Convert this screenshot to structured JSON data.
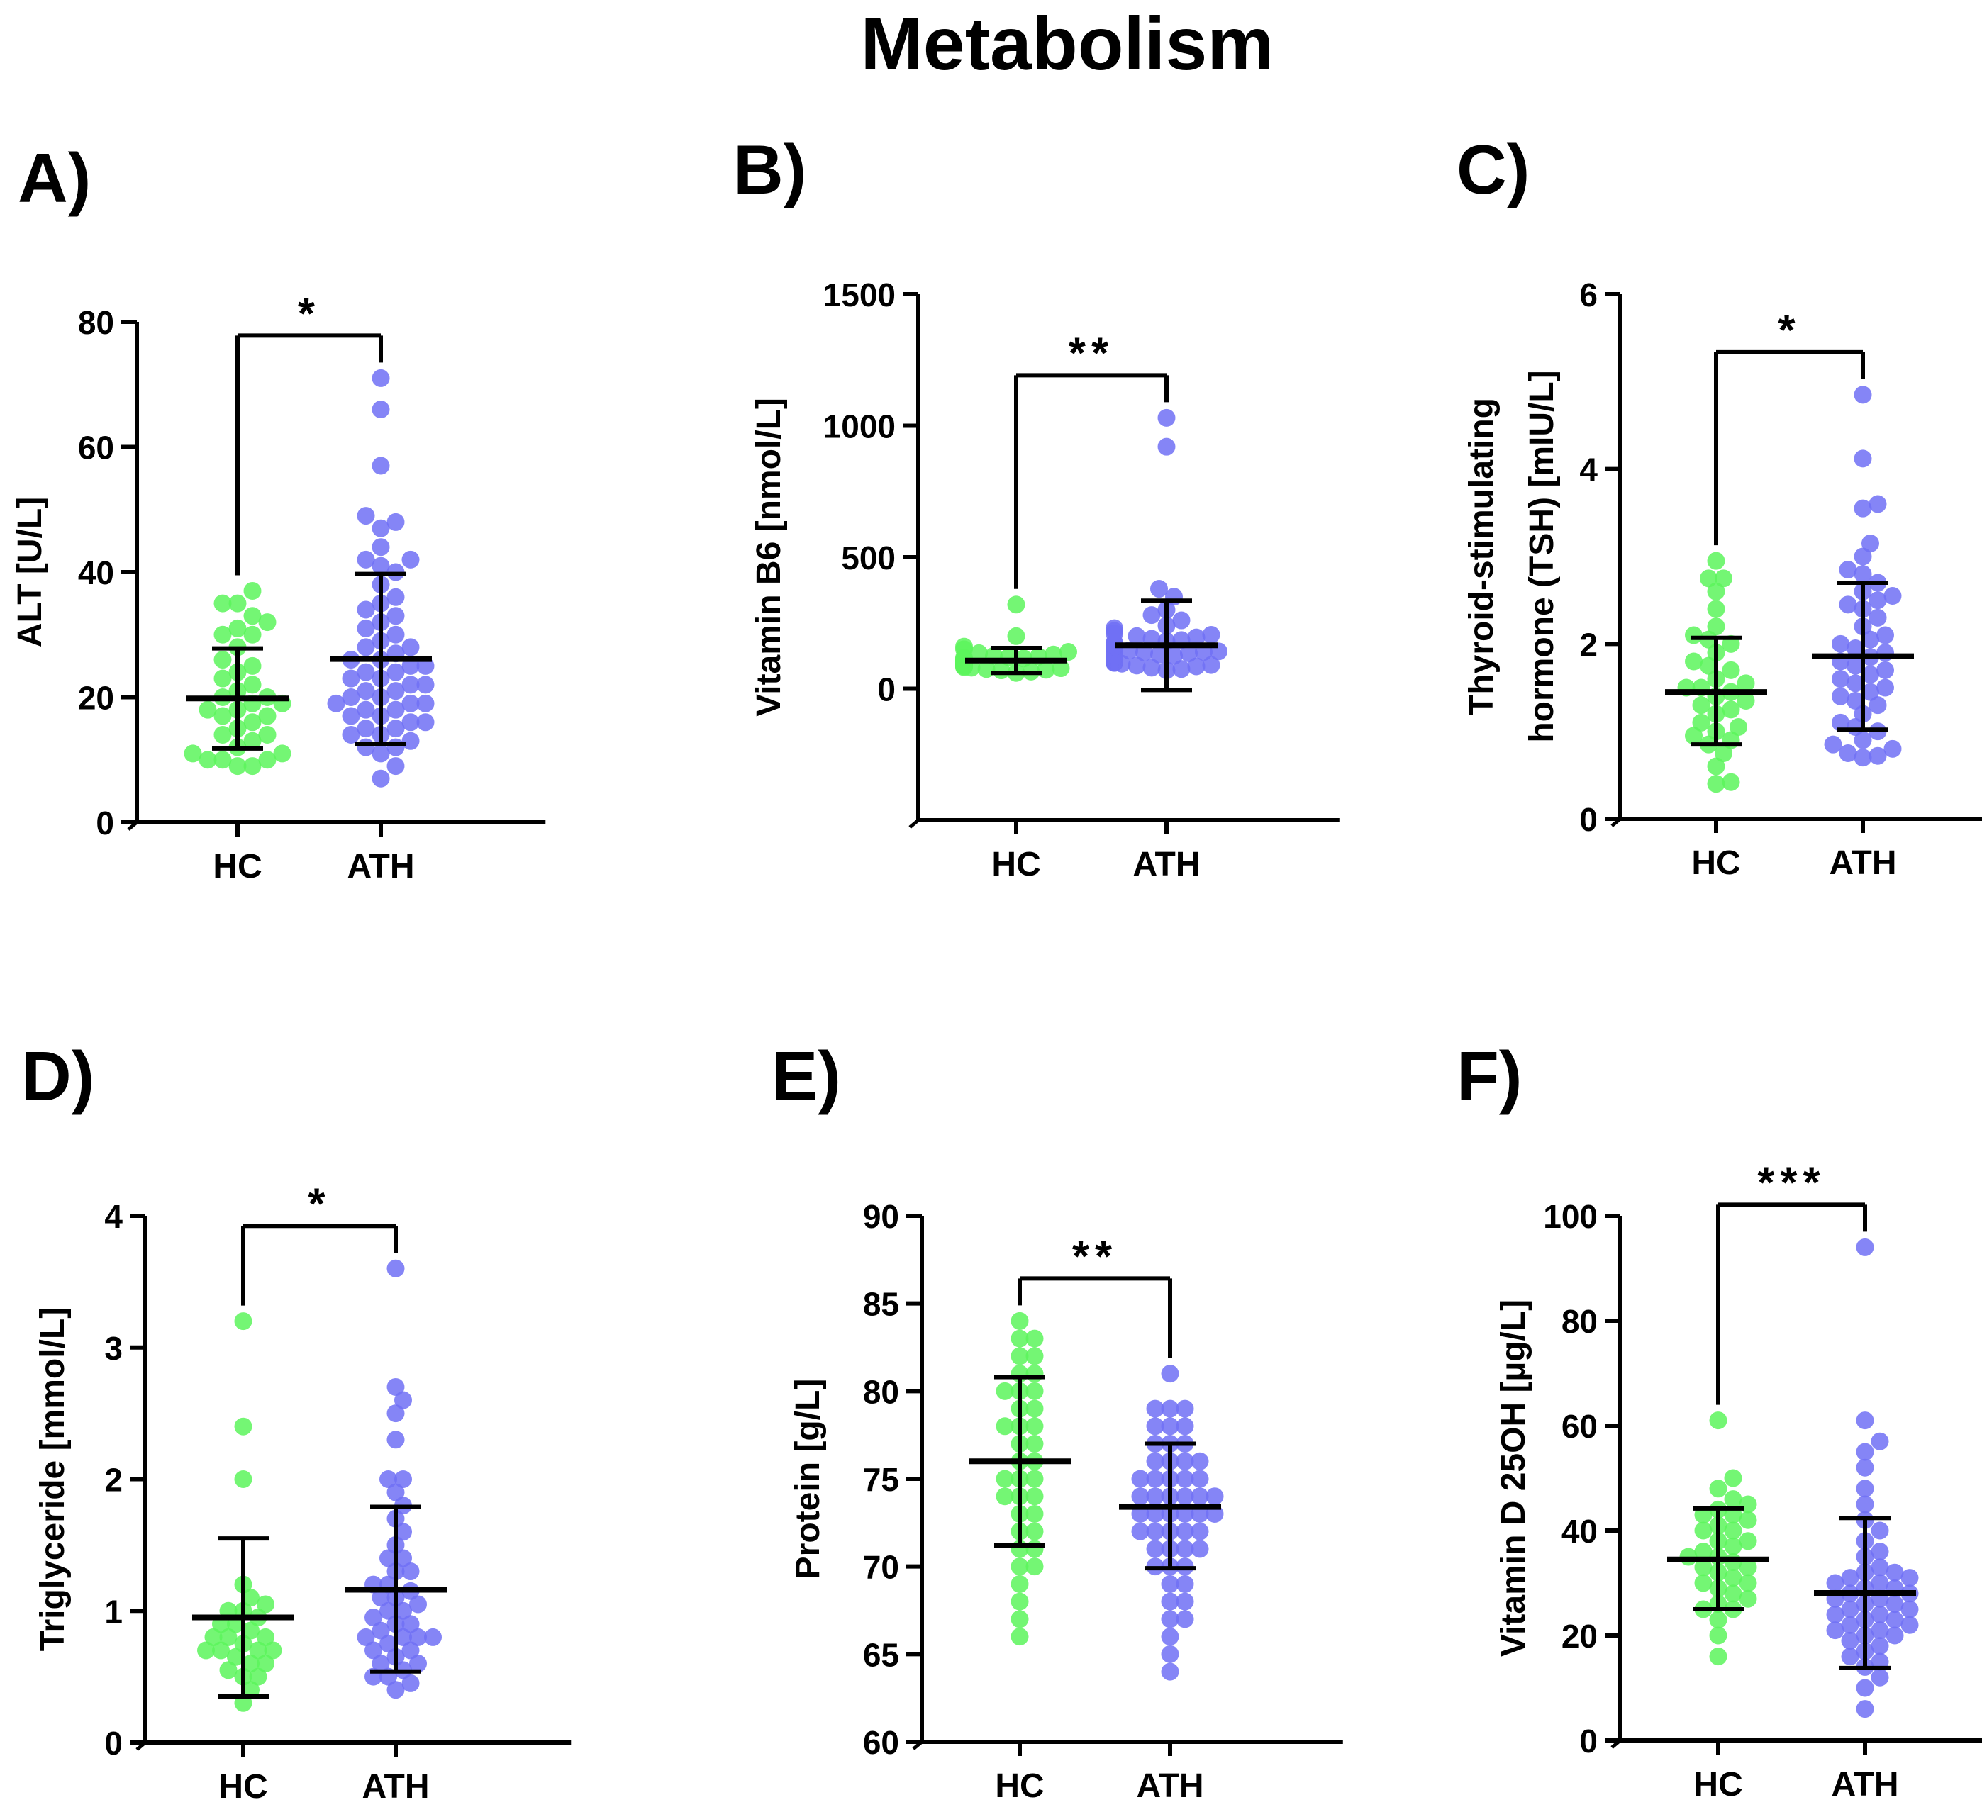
{
  "figure_title": "Metabolism",
  "colors": {
    "hc": "#5CF55C",
    "ath": "#7070F5",
    "axis": "#000000"
  },
  "chart_data": [
    {
      "type": "scatter",
      "panel_label": "A)",
      "ylabel": "ALT [U/L]",
      "ylim": [
        0,
        80
      ],
      "yticks": [
        0,
        20,
        40,
        60,
        80
      ],
      "categories": [
        "HC",
        "ATH"
      ],
      "significance": "*",
      "series": [
        {
          "name": "HC",
          "mean": 19.8,
          "sd_low": 11.8,
          "sd_high": 27.8,
          "values": [
            9,
            9,
            10,
            10,
            10,
            11,
            11,
            12,
            13,
            14,
            14,
            15,
            16,
            17,
            17,
            18,
            18,
            19,
            19,
            20,
            20,
            21,
            22,
            23,
            24,
            25,
            26,
            28,
            30,
            30,
            31,
            32,
            33,
            35,
            35,
            37
          ]
        },
        {
          "name": "ATH",
          "mean": 26.1,
          "sd_low": 12.5,
          "sd_high": 39.7,
          "values": [
            7,
            9,
            11,
            12,
            12,
            13,
            14,
            14,
            15,
            15,
            16,
            16,
            17,
            17,
            18,
            18,
            19,
            19,
            19,
            20,
            20,
            21,
            21,
            22,
            22,
            23,
            23,
            24,
            24,
            25,
            25,
            26,
            26,
            27,
            28,
            28,
            29,
            30,
            31,
            32,
            33,
            34,
            35,
            36,
            38,
            40,
            41,
            42,
            42,
            44,
            47,
            48,
            49,
            57,
            66,
            71
          ]
        }
      ]
    },
    {
      "type": "scatter",
      "panel_label": "B)",
      "ylabel": "Vitamin B6 [nmol/L]",
      "ylim": [
        -500,
        1500
      ],
      "yticks": [
        0,
        500,
        1000,
        1500
      ],
      "categories": [
        "HC",
        "ATH"
      ],
      "significance": "**",
      "series": [
        {
          "name": "HC",
          "mean": 107,
          "sd_low": 60,
          "sd_high": 155,
          "values": [
            60,
            65,
            70,
            72,
            75,
            78,
            80,
            82,
            85,
            88,
            90,
            92,
            95,
            98,
            100,
            100,
            102,
            105,
            108,
            110,
            112,
            115,
            118,
            120,
            122,
            125,
            130,
            135,
            140,
            150,
            160,
            200,
            320
          ]
        },
        {
          "name": "ATH",
          "mean": 165,
          "sd_low": -5,
          "sd_high": 335,
          "values": [
            70,
            75,
            80,
            85,
            88,
            90,
            95,
            98,
            100,
            102,
            105,
            108,
            110,
            112,
            115,
            118,
            120,
            122,
            125,
            128,
            130,
            135,
            138,
            140,
            142,
            145,
            150,
            155,
            158,
            160,
            165,
            170,
            175,
            180,
            185,
            190,
            195,
            200,
            205,
            210,
            220,
            230,
            240,
            260,
            280,
            300,
            350,
            380,
            920,
            1030
          ]
        }
      ]
    },
    {
      "type": "scatter",
      "panel_label": "C)",
      "ylabel": "Thyroid-stimulating hormone (TSH) [mIU/L]",
      "ylim": [
        0,
        6
      ],
      "yticks": [
        0,
        2,
        4,
        6
      ],
      "categories": [
        "HC",
        "ATH"
      ],
      "significance": "*",
      "series": [
        {
          "name": "HC",
          "mean": 1.45,
          "sd_low": 0.85,
          "sd_high": 2.07,
          "values": [
            0.4,
            0.42,
            0.6,
            0.75,
            0.85,
            0.9,
            0.95,
            1.0,
            1.05,
            1.1,
            1.2,
            1.25,
            1.3,
            1.35,
            1.4,
            1.45,
            1.5,
            1.5,
            1.55,
            1.6,
            1.7,
            1.75,
            1.8,
            1.9,
            2.0,
            2.05,
            2.1,
            2.2,
            2.4,
            2.6,
            2.75,
            2.75,
            2.95
          ]
        },
        {
          "name": "ATH",
          "mean": 1.86,
          "sd_low": 1.02,
          "sd_high": 2.7,
          "values": [
            0.7,
            0.72,
            0.75,
            0.8,
            0.85,
            0.9,
            1.0,
            1.05,
            1.1,
            1.2,
            1.3,
            1.35,
            1.4,
            1.45,
            1.5,
            1.55,
            1.6,
            1.65,
            1.7,
            1.75,
            1.8,
            1.85,
            1.9,
            1.95,
            2.0,
            2.05,
            2.1,
            2.2,
            2.3,
            2.4,
            2.45,
            2.5,
            2.55,
            2.6,
            2.7,
            2.8,
            2.85,
            3.0,
            3.15,
            3.55,
            3.6,
            4.12,
            4.85
          ]
        }
      ]
    },
    {
      "type": "scatter",
      "panel_label": "D)",
      "ylabel": "Triglyceride [mmol/L]",
      "ylim": [
        0,
        4
      ],
      "yticks": [
        0,
        1,
        2,
        3,
        4
      ],
      "categories": [
        "HC",
        "ATH"
      ],
      "significance": "*",
      "series": [
        {
          "name": "HC",
          "mean": 0.95,
          "sd_low": 0.35,
          "sd_high": 1.55,
          "values": [
            0.3,
            0.4,
            0.5,
            0.5,
            0.55,
            0.6,
            0.6,
            0.65,
            0.7,
            0.7,
            0.7,
            0.7,
            0.75,
            0.8,
            0.8,
            0.8,
            0.85,
            0.9,
            0.9,
            0.95,
            1.0,
            1.0,
            1.05,
            1.1,
            1.2,
            2.0,
            2.4,
            3.2
          ]
        },
        {
          "name": "ATH",
          "mean": 1.16,
          "sd_low": 0.54,
          "sd_high": 1.79,
          "values": [
            0.4,
            0.45,
            0.5,
            0.5,
            0.55,
            0.6,
            0.6,
            0.65,
            0.7,
            0.7,
            0.75,
            0.8,
            0.8,
            0.8,
            0.8,
            0.85,
            0.9,
            0.9,
            0.95,
            1.0,
            1.0,
            1.05,
            1.1,
            1.1,
            1.15,
            1.2,
            1.2,
            1.3,
            1.3,
            1.4,
            1.4,
            1.5,
            1.6,
            1.7,
            1.8,
            1.9,
            2.0,
            2.0,
            2.3,
            2.5,
            2.6,
            2.7,
            3.6
          ]
        }
      ]
    },
    {
      "type": "scatter",
      "panel_label": "E)",
      "ylabel": "Protein [g/L]",
      "ylim": [
        60,
        90
      ],
      "yticks": [
        60,
        65,
        70,
        75,
        80,
        85,
        90
      ],
      "categories": [
        "HC",
        "ATH"
      ],
      "significance": "**",
      "series": [
        {
          "name": "HC",
          "mean": 76,
          "sd_low": 71.2,
          "sd_high": 80.8,
          "values": [
            66,
            67,
            68,
            69,
            70,
            70,
            71,
            71,
            72,
            72,
            73,
            73,
            74,
            74,
            74,
            75,
            75,
            75,
            76,
            76,
            77,
            77,
            78,
            78,
            78,
            79,
            79,
            80,
            80,
            80,
            81,
            81,
            82,
            82,
            83,
            83,
            84
          ]
        },
        {
          "name": "ATH",
          "mean": 73.4,
          "sd_low": 69.9,
          "sd_high": 77.0,
          "values": [
            64,
            65,
            66,
            67,
            67,
            68,
            68,
            69,
            69,
            70,
            70,
            70,
            71,
            71,
            71,
            71,
            72,
            72,
            72,
            72,
            72,
            73,
            73,
            73,
            73,
            73,
            73,
            74,
            74,
            74,
            74,
            74,
            74,
            75,
            75,
            75,
            75,
            75,
            76,
            76,
            76,
            76,
            77,
            77,
            77,
            78,
            78,
            78,
            79,
            79,
            79,
            81
          ]
        }
      ]
    },
    {
      "type": "scatter",
      "panel_label": "F)",
      "ylabel": "Vitamin D 25OH [µg/L]",
      "ylim": [
        0,
        100
      ],
      "yticks": [
        0,
        20,
        40,
        60,
        80,
        100
      ],
      "categories": [
        "HC",
        "ATH"
      ],
      "significance": "***",
      "series": [
        {
          "name": "HC",
          "mean": 34.5,
          "sd_low": 25,
          "sd_high": 44.2,
          "values": [
            16,
            20,
            23,
            25,
            25,
            26,
            27,
            28,
            29,
            30,
            30,
            31,
            32,
            33,
            33,
            34,
            35,
            35,
            36,
            37,
            38,
            38,
            40,
            40,
            41,
            42,
            43,
            43,
            44,
            45,
            46,
            48,
            50,
            61
          ]
        },
        {
          "name": "ATH",
          "mean": 28.1,
          "sd_low": 13.8,
          "sd_high": 42.4,
          "values": [
            6,
            10,
            12,
            14,
            15,
            16,
            17,
            18,
            19,
            20,
            20,
            21,
            21,
            22,
            22,
            23,
            23,
            24,
            24,
            25,
            25,
            26,
            26,
            27,
            27,
            28,
            28,
            29,
            29,
            30,
            30,
            31,
            31,
            32,
            32,
            33,
            35,
            36,
            38,
            40,
            42,
            45,
            48,
            52,
            55,
            57,
            61,
            94
          ]
        }
      ]
    }
  ]
}
